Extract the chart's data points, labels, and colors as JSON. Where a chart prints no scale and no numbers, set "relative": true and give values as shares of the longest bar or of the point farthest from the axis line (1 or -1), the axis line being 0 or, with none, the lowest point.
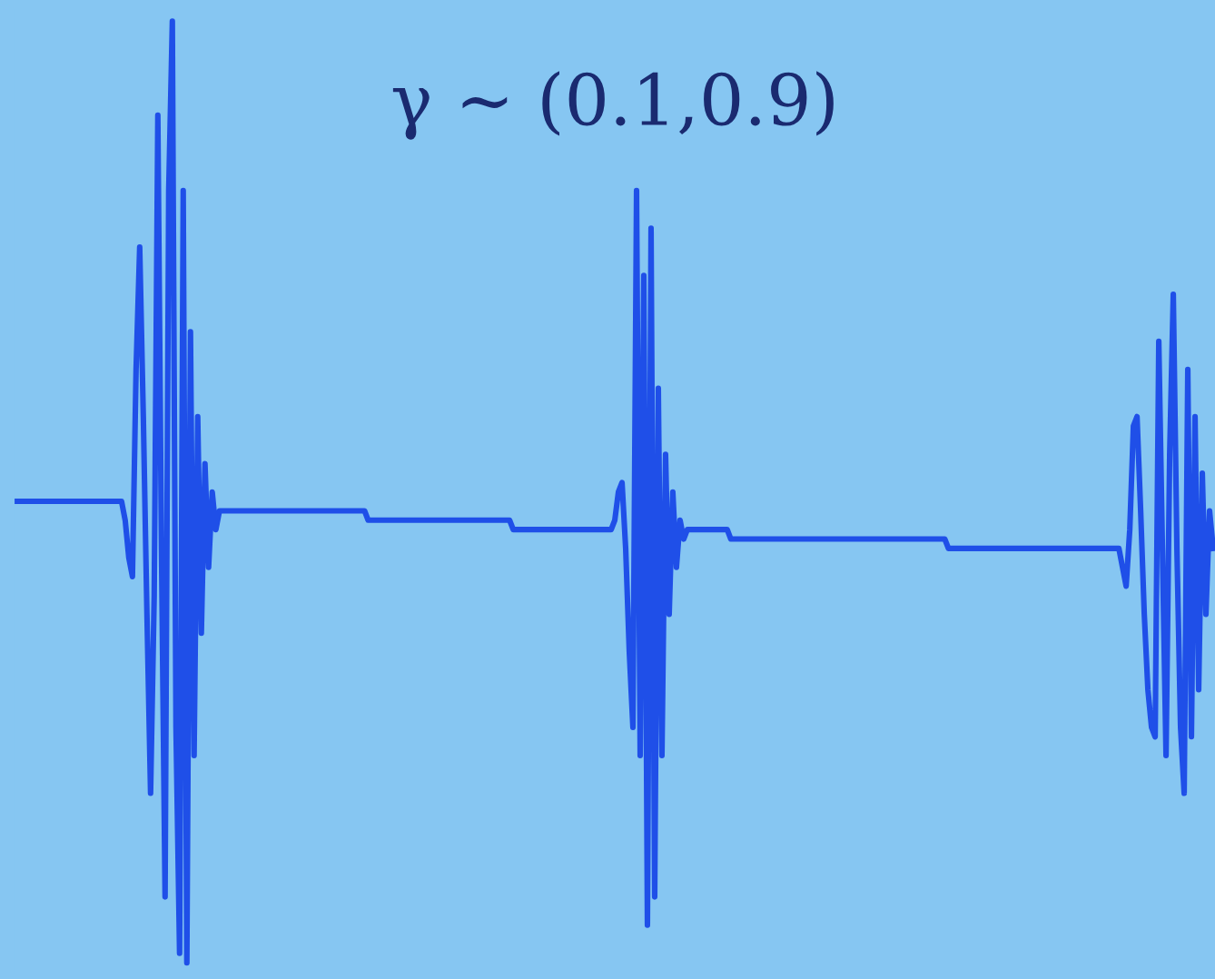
{
  "chart_data": {
    "type": "line",
    "title": "γ ∼ (0.1,0.9)",
    "relative": true,
    "marker": "none",
    "line_style": "solid",
    "categories": [
      null,
      null,
      null,
      null,
      null,
      null,
      null,
      null,
      null,
      null,
      null,
      null,
      null,
      null,
      null,
      null,
      null,
      null,
      null,
      null,
      null,
      null,
      null,
      null,
      null,
      null,
      null,
      null,
      null,
      null,
      null,
      null,
      null,
      null,
      null,
      null,
      null,
      null,
      null,
      null,
      null,
      null,
      null,
      null,
      null,
      null,
      null,
      null,
      null,
      null,
      null,
      null,
      null,
      null,
      null,
      null,
      null,
      null,
      null,
      null,
      null,
      null,
      null,
      null,
      null,
      null,
      null,
      null,
      null,
      null,
      null,
      null,
      null,
      null,
      null,
      null,
      null,
      null,
      null,
      null,
      null,
      null,
      null,
      null,
      null,
      null,
      null,
      null,
      null,
      null,
      null,
      null,
      null,
      null,
      null,
      null,
      null,
      null,
      null,
      null,
      null,
      null,
      null,
      null,
      null,
      null,
      null,
      null,
      null,
      null,
      null,
      null,
      null,
      null,
      null,
      null,
      null,
      null,
      null,
      null,
      null,
      null,
      null,
      null,
      null,
      null,
      null,
      null,
      null,
      null,
      null,
      null,
      null,
      null,
      null,
      null,
      null,
      null,
      null,
      null,
      null,
      null,
      null,
      null,
      null,
      null,
      null,
      null,
      null,
      null,
      null,
      null,
      null,
      null,
      null,
      null,
      null,
      null,
      null,
      null,
      null,
      null,
      null,
      null,
      null,
      null,
      null,
      null,
      null,
      null,
      null,
      null,
      null,
      null,
      null,
      null,
      null,
      null,
      null,
      null,
      null,
      null,
      null,
      null,
      null,
      null,
      null,
      null,
      null,
      null,
      null,
      null,
      null,
      null,
      null,
      null,
      null,
      null,
      null,
      null,
      null,
      null,
      null,
      null,
      null,
      null,
      null,
      null,
      null,
      null,
      null,
      null,
      null,
      null,
      null,
      null,
      null,
      null,
      null,
      null,
      null,
      null,
      null,
      null,
      null,
      null,
      null,
      null,
      null,
      null,
      null,
      null,
      null,
      null,
      null,
      null,
      null,
      null,
      null,
      null,
      null,
      null,
      null,
      null,
      null,
      null,
      null,
      null,
      null,
      null,
      null,
      null,
      null,
      null,
      null,
      null,
      null,
      null,
      null,
      null,
      null,
      null,
      null,
      null,
      null,
      null,
      null,
      null,
      null,
      null,
      null,
      null,
      null,
      null,
      null,
      null,
      null,
      null,
      null,
      null,
      null,
      null,
      null,
      null,
      null,
      null,
      null,
      null,
      null,
      null,
      null,
      null,
      null,
      null,
      null,
      null,
      null,
      null,
      null,
      null,
      null,
      null,
      null,
      null,
      null,
      null,
      null,
      null,
      null,
      null,
      null,
      null,
      null,
      null,
      null,
      null,
      null,
      null,
      null,
      null,
      null,
      null,
      null,
      null,
      null,
      null,
      null,
      null,
      null,
      null,
      null
    ],
    "series": [
      {
        "color": "#1f4fe8",
        "values": [
          0.49,
          0.49,
          0.49,
          0.49,
          0.49,
          0.49,
          0.49,
          0.49,
          0.49,
          0.49,
          0.49,
          0.49,
          0.49,
          0.49,
          0.49,
          0.49,
          0.49,
          0.49,
          0.49,
          0.49,
          0.49,
          0.49,
          0.49,
          0.49,
          0.49,
          0.49,
          0.49,
          0.49,
          0.49,
          0.49,
          0.47,
          0.43,
          0.41,
          0.63,
          0.76,
          0.58,
          0.37,
          0.18,
          0.39,
          0.9,
          0.44,
          0.07,
          0.82,
          1.0,
          0.25,
          0.01,
          0.82,
          0.0,
          0.67,
          0.22,
          0.58,
          0.35,
          0.53,
          0.42,
          0.5,
          0.46,
          0.48,
          0.48,
          0.48,
          0.48,
          0.48,
          0.48,
          0.48,
          0.48,
          0.48,
          0.48,
          0.48,
          0.48,
          0.48,
          0.48,
          0.48,
          0.48,
          0.48,
          0.48,
          0.48,
          0.48,
          0.48,
          0.48,
          0.48,
          0.48,
          0.48,
          0.48,
          0.48,
          0.48,
          0.48,
          0.48,
          0.48,
          0.48,
          0.48,
          0.48,
          0.48,
          0.48,
          0.48,
          0.48,
          0.48,
          0.48,
          0.48,
          0.47,
          0.47,
          0.47,
          0.47,
          0.47,
          0.47,
          0.47,
          0.47,
          0.47,
          0.47,
          0.47,
          0.47,
          0.47,
          0.47,
          0.47,
          0.47,
          0.47,
          0.47,
          0.47,
          0.47,
          0.47,
          0.47,
          0.47,
          0.47,
          0.47,
          0.47,
          0.47,
          0.47,
          0.47,
          0.47,
          0.47,
          0.47,
          0.47,
          0.47,
          0.47,
          0.47,
          0.47,
          0.47,
          0.47,
          0.47,
          0.46,
          0.46,
          0.46,
          0.46,
          0.46,
          0.46,
          0.46,
          0.46,
          0.46,
          0.46,
          0.46,
          0.46,
          0.46,
          0.46,
          0.46,
          0.46,
          0.46,
          0.46,
          0.46,
          0.46,
          0.46,
          0.46,
          0.46,
          0.46,
          0.46,
          0.46,
          0.46,
          0.46,
          0.47,
          0.5,
          0.51,
          0.44,
          0.33,
          0.25,
          0.82,
          0.22,
          0.73,
          0.04,
          0.78,
          0.07,
          0.61,
          0.22,
          0.54,
          0.37,
          0.5,
          0.42,
          0.47,
          0.45,
          0.46,
          0.46,
          0.46,
          0.46,
          0.46,
          0.46,
          0.46,
          0.46,
          0.46,
          0.46,
          0.46,
          0.46,
          0.45,
          0.45,
          0.45,
          0.45,
          0.45,
          0.45,
          0.45,
          0.45,
          0.45,
          0.45,
          0.45,
          0.45,
          0.45,
          0.45,
          0.45,
          0.45,
          0.45,
          0.45,
          0.45,
          0.45,
          0.45,
          0.45,
          0.45,
          0.45,
          0.45,
          0.45,
          0.45,
          0.45,
          0.45,
          0.45,
          0.45,
          0.45,
          0.45,
          0.45,
          0.45,
          0.45,
          0.45,
          0.45,
          0.45,
          0.45,
          0.45,
          0.45,
          0.45,
          0.45,
          0.45,
          0.45,
          0.45,
          0.45,
          0.45,
          0.45,
          0.45,
          0.45,
          0.45,
          0.45,
          0.45,
          0.45,
          0.45,
          0.45,
          0.45,
          0.45,
          0.44,
          0.44,
          0.44,
          0.44,
          0.44,
          0.44,
          0.44,
          0.44,
          0.44,
          0.44,
          0.44,
          0.44,
          0.44,
          0.44,
          0.44,
          0.44,
          0.44,
          0.44,
          0.44,
          0.44,
          0.44,
          0.44,
          0.44,
          0.44,
          0.44,
          0.44,
          0.44,
          0.44,
          0.44,
          0.44,
          0.44,
          0.44,
          0.44,
          0.44,
          0.44,
          0.44,
          0.44,
          0.44,
          0.44,
          0.44,
          0.44,
          0.44,
          0.44,
          0.44,
          0.44,
          0.44,
          0.44,
          0.44,
          0.42,
          0.4,
          0.46,
          0.57,
          0.58,
          0.48,
          0.37,
          0.29,
          0.25,
          0.24,
          0.66,
          0.44,
          0.22,
          0.54,
          0.71,
          0.44,
          0.25,
          0.18,
          0.63,
          0.24,
          0.58,
          0.29,
          0.52,
          0.37,
          0.48,
          0.44
        ]
      }
    ]
  }
}
